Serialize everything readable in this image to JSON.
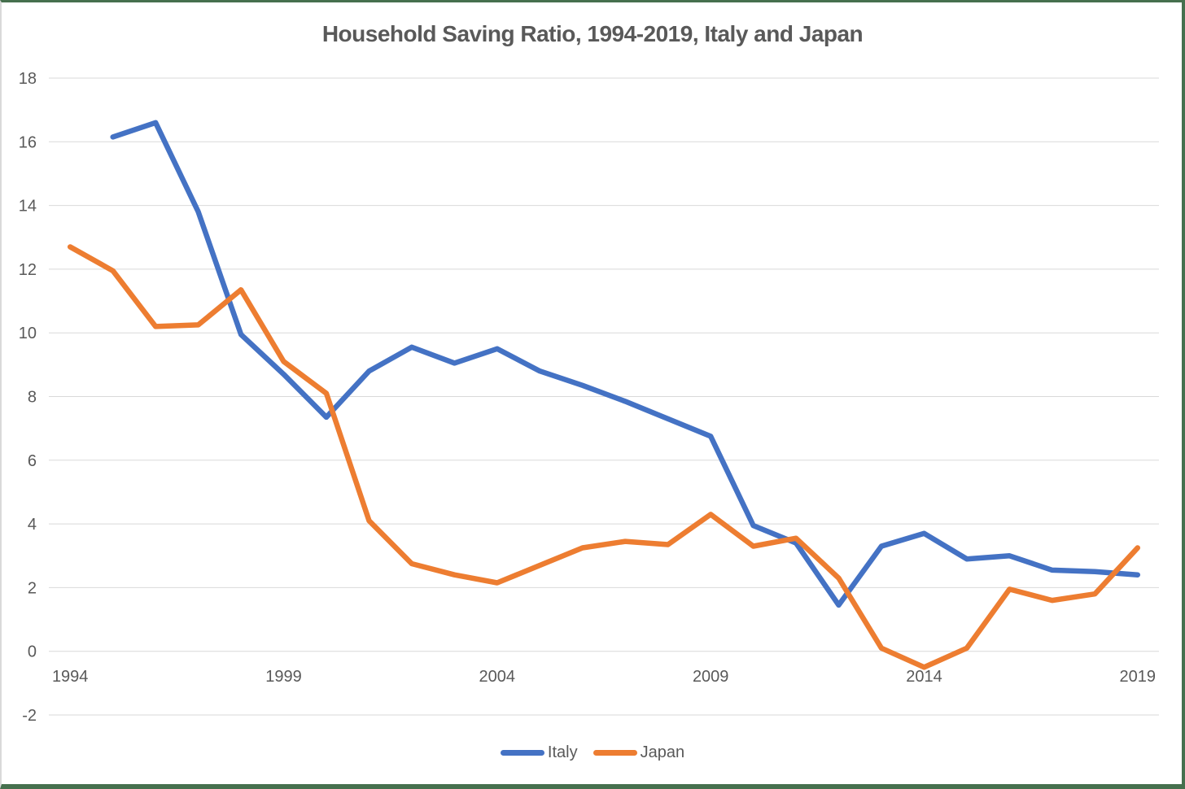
{
  "title": "Household Saving Ratio, 1994-2019, Italy and Japan",
  "colors": {
    "italy_line": "#4472C4",
    "japan_line": "#ED7D31",
    "axis_text": "#595959",
    "title_text": "#595959",
    "gridline": "#D9D9D9",
    "frame_border": "#46704E",
    "background": "#FFFFFF"
  },
  "legend": {
    "position": "bottom",
    "items": [
      "Italy",
      "Japan"
    ]
  },
  "chart_data": {
    "type": "line",
    "title": "Household Saving Ratio, 1994-2019, Italy and Japan",
    "xlabel": "",
    "ylabel": "",
    "x": [
      1994,
      1995,
      1996,
      1997,
      1998,
      1999,
      2000,
      2001,
      2002,
      2003,
      2004,
      2005,
      2006,
      2007,
      2008,
      2009,
      2010,
      2011,
      2012,
      2013,
      2014,
      2015,
      2016,
      2017,
      2018,
      2019
    ],
    "x_tick_labels": [
      "1994",
      "1999",
      "2004",
      "2009",
      "2014",
      "2019"
    ],
    "ylim": [
      -2,
      18
    ],
    "y_ticks": [
      -2,
      0,
      2,
      4,
      6,
      8,
      10,
      12,
      14,
      16,
      18
    ],
    "grid": true,
    "legend_position": "bottom",
    "series": [
      {
        "name": "Italy",
        "color": "#4472C4",
        "values": [
          null,
          16.15,
          16.6,
          13.8,
          9.95,
          8.7,
          7.35,
          8.8,
          9.55,
          9.05,
          9.5,
          8.8,
          8.35,
          7.85,
          7.3,
          6.75,
          3.95,
          3.4,
          1.45,
          3.3,
          3.7,
          2.9,
          3.0,
          2.55,
          2.5,
          2.4
        ]
      },
      {
        "name": "Japan",
        "color": "#ED7D31",
        "values": [
          12.7,
          11.95,
          10.2,
          10.25,
          11.35,
          9.1,
          8.1,
          4.1,
          2.75,
          2.4,
          2.15,
          2.7,
          3.25,
          3.45,
          3.35,
          4.3,
          3.3,
          3.55,
          2.3,
          0.1,
          -0.5,
          0.1,
          1.95,
          1.6,
          1.8,
          3.25
        ]
      }
    ]
  }
}
